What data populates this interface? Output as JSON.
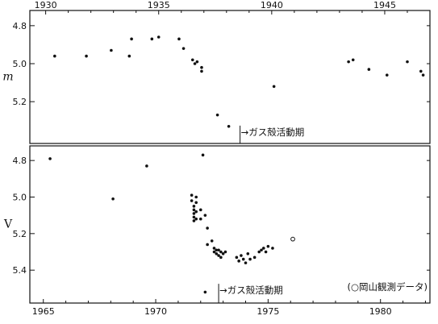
{
  "chart_data": [
    {
      "type": "scatter",
      "panel": "top",
      "ylabel": "m",
      "x_ticks": [
        "1930",
        "1935",
        "1940",
        "1945"
      ],
      "xlim": [
        1929.3,
        1947.0
      ],
      "ylim": [
        4.72,
        5.42
      ],
      "y_inverted": true,
      "y_ticks": [
        "4.8",
        "5.0",
        "5.2"
      ],
      "x_tick_position": "top",
      "annotation": {
        "text": "→ガス殻活動期",
        "year": 1938.6,
        "y_text": 5.36
      },
      "series": [
        {
          "marker": "filled",
          "x": [
            1930.4,
            1931.8,
            1932.9,
            1933.7,
            1933.8,
            1934.7,
            1935.0,
            1935.9,
            1936.1,
            1936.5,
            1936.6,
            1936.7,
            1936.9,
            1936.9,
            1937.6,
            1938.1,
            1940.1,
            1943.4,
            1943.6,
            1944.3,
            1945.1,
            1946.0,
            1946.6,
            1946.7
          ],
          "y": [
            4.96,
            4.96,
            4.93,
            4.96,
            4.87,
            4.87,
            4.86,
            4.87,
            4.92,
            4.98,
            5.0,
            4.99,
            5.02,
            5.04,
            5.27,
            5.33,
            5.12,
            4.99,
            4.98,
            5.03,
            5.06,
            4.99,
            5.04,
            5.06
          ]
        }
      ]
    },
    {
      "type": "scatter",
      "panel": "bottom",
      "ylabel": "V",
      "x_ticks": [
        "1965",
        "1970",
        "1975",
        "1980"
      ],
      "xlim": [
        1964.4,
        1982.2
      ],
      "ylim": [
        4.72,
        5.58
      ],
      "y_inverted": true,
      "y_ticks": [
        "4.8",
        "5.0",
        "5.2",
        "5.4"
      ],
      "x_tick_position": "bottom",
      "annotation": {
        "text": "→ガス殻活動期",
        "year": 1972.8,
        "y_text": 5.51
      },
      "legend": {
        "text": "(○岡山観測データ)",
        "position": "bottom-right"
      },
      "series": [
        {
          "marker": "filled",
          "x": [
            1965.3,
            1968.1,
            1969.6,
            1971.6,
            1971.6,
            1971.7,
            1971.7,
            1971.7,
            1971.7,
            1971.7,
            1971.8,
            1971.8,
            1971.8,
            1971.8,
            1972.0,
            1972.0,
            1972.1,
            1972.2,
            1972.3,
            1972.3,
            1972.5,
            1972.6,
            1972.6,
            1972.7,
            1972.7,
            1972.8,
            1972.8,
            1972.9,
            1972.9,
            1973.0,
            1973.1,
            1973.6,
            1973.7,
            1973.8,
            1973.9,
            1974.0,
            1974.1,
            1974.2,
            1974.4,
            1974.6,
            1974.7,
            1974.8,
            1974.9,
            1975.0,
            1975.2,
            1972.2
          ],
          "y": [
            4.79,
            5.01,
            4.83,
            4.99,
            5.02,
            5.05,
            5.07,
            5.09,
            5.11,
            5.13,
            5.0,
            5.03,
            5.08,
            5.12,
            5.07,
            5.12,
            4.77,
            5.1,
            5.17,
            5.26,
            5.24,
            5.28,
            5.3,
            5.29,
            5.31,
            5.29,
            5.32,
            5.3,
            5.33,
            5.31,
            5.3,
            5.33,
            5.35,
            5.32,
            5.34,
            5.36,
            5.31,
            5.34,
            5.33,
            5.3,
            5.29,
            5.28,
            5.3,
            5.27,
            5.28,
            5.52
          ]
        },
        {
          "marker": "open",
          "x": [
            1976.1
          ],
          "y": [
            5.23
          ]
        }
      ]
    }
  ]
}
